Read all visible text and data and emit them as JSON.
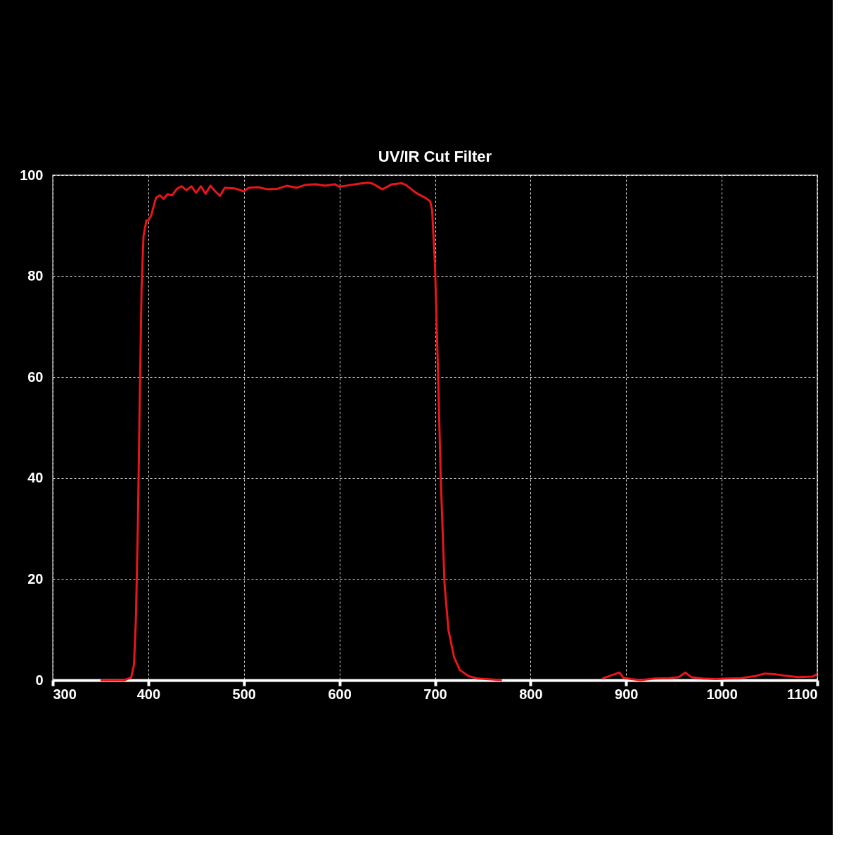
{
  "chart_data": {
    "type": "line",
    "title": "UV/IR Cut Filter",
    "x": [
      350,
      375,
      382,
      385,
      387,
      389,
      391,
      393,
      395,
      398,
      400,
      403,
      408,
      412,
      416,
      420,
      425,
      430,
      435,
      440,
      445,
      450,
      455,
      460,
      465,
      470,
      475,
      480,
      490,
      500,
      505,
      515,
      525,
      535,
      545,
      555,
      565,
      575,
      585,
      595,
      600,
      610,
      620,
      630,
      635,
      645,
      655,
      665,
      670,
      680,
      690,
      695,
      697,
      700,
      703,
      706,
      710,
      714,
      720,
      726,
      735,
      745,
      770,
      820,
      875,
      885,
      893,
      897,
      905,
      915,
      930,
      945,
      955,
      962,
      968,
      980,
      995,
      1005,
      1020,
      1035,
      1045,
      1055,
      1065,
      1080,
      1095,
      1100
    ],
    "series": [
      {
        "color": "#e8161b",
        "values": [
          0,
          0,
          0.5,
          3,
          12,
          30,
          55,
          78,
          88,
          91,
          91,
          92,
          95.5,
          96,
          95.3,
          96.2,
          96,
          97.3,
          97.8,
          97,
          97.8,
          96.5,
          97.8,
          96.3,
          97.9,
          96.8,
          95.9,
          97.5,
          97.4,
          96.8,
          97.5,
          97.6,
          97.2,
          97.3,
          97.9,
          97.5,
          98.1,
          98.2,
          97.9,
          98.2,
          97.7,
          98,
          98.3,
          98.5,
          98.3,
          97.2,
          98.2,
          98.4,
          98,
          96.5,
          95.5,
          94.8,
          93,
          82,
          62,
          40,
          19,
          10,
          4.5,
          2,
          0.8,
          0.3,
          0,
          null,
          0.3,
          1,
          1.5,
          0.5,
          0.2,
          0,
          0.3,
          0.4,
          0.6,
          1.5,
          0.6,
          0.3,
          0.2,
          0.3,
          0.4,
          0.8,
          1.3,
          1.2,
          0.9,
          0.6,
          0.7,
          1.2
        ]
      }
    ],
    "xlim": [
      300,
      1100
    ],
    "xticks": [
      300,
      400,
      500,
      600,
      700,
      800,
      900,
      1000,
      1100
    ],
    "ylim": [
      0,
      100
    ],
    "yticks": [
      0,
      20,
      40,
      60,
      80,
      100
    ],
    "grid": true,
    "marker": "none",
    "line_style": "solid"
  }
}
